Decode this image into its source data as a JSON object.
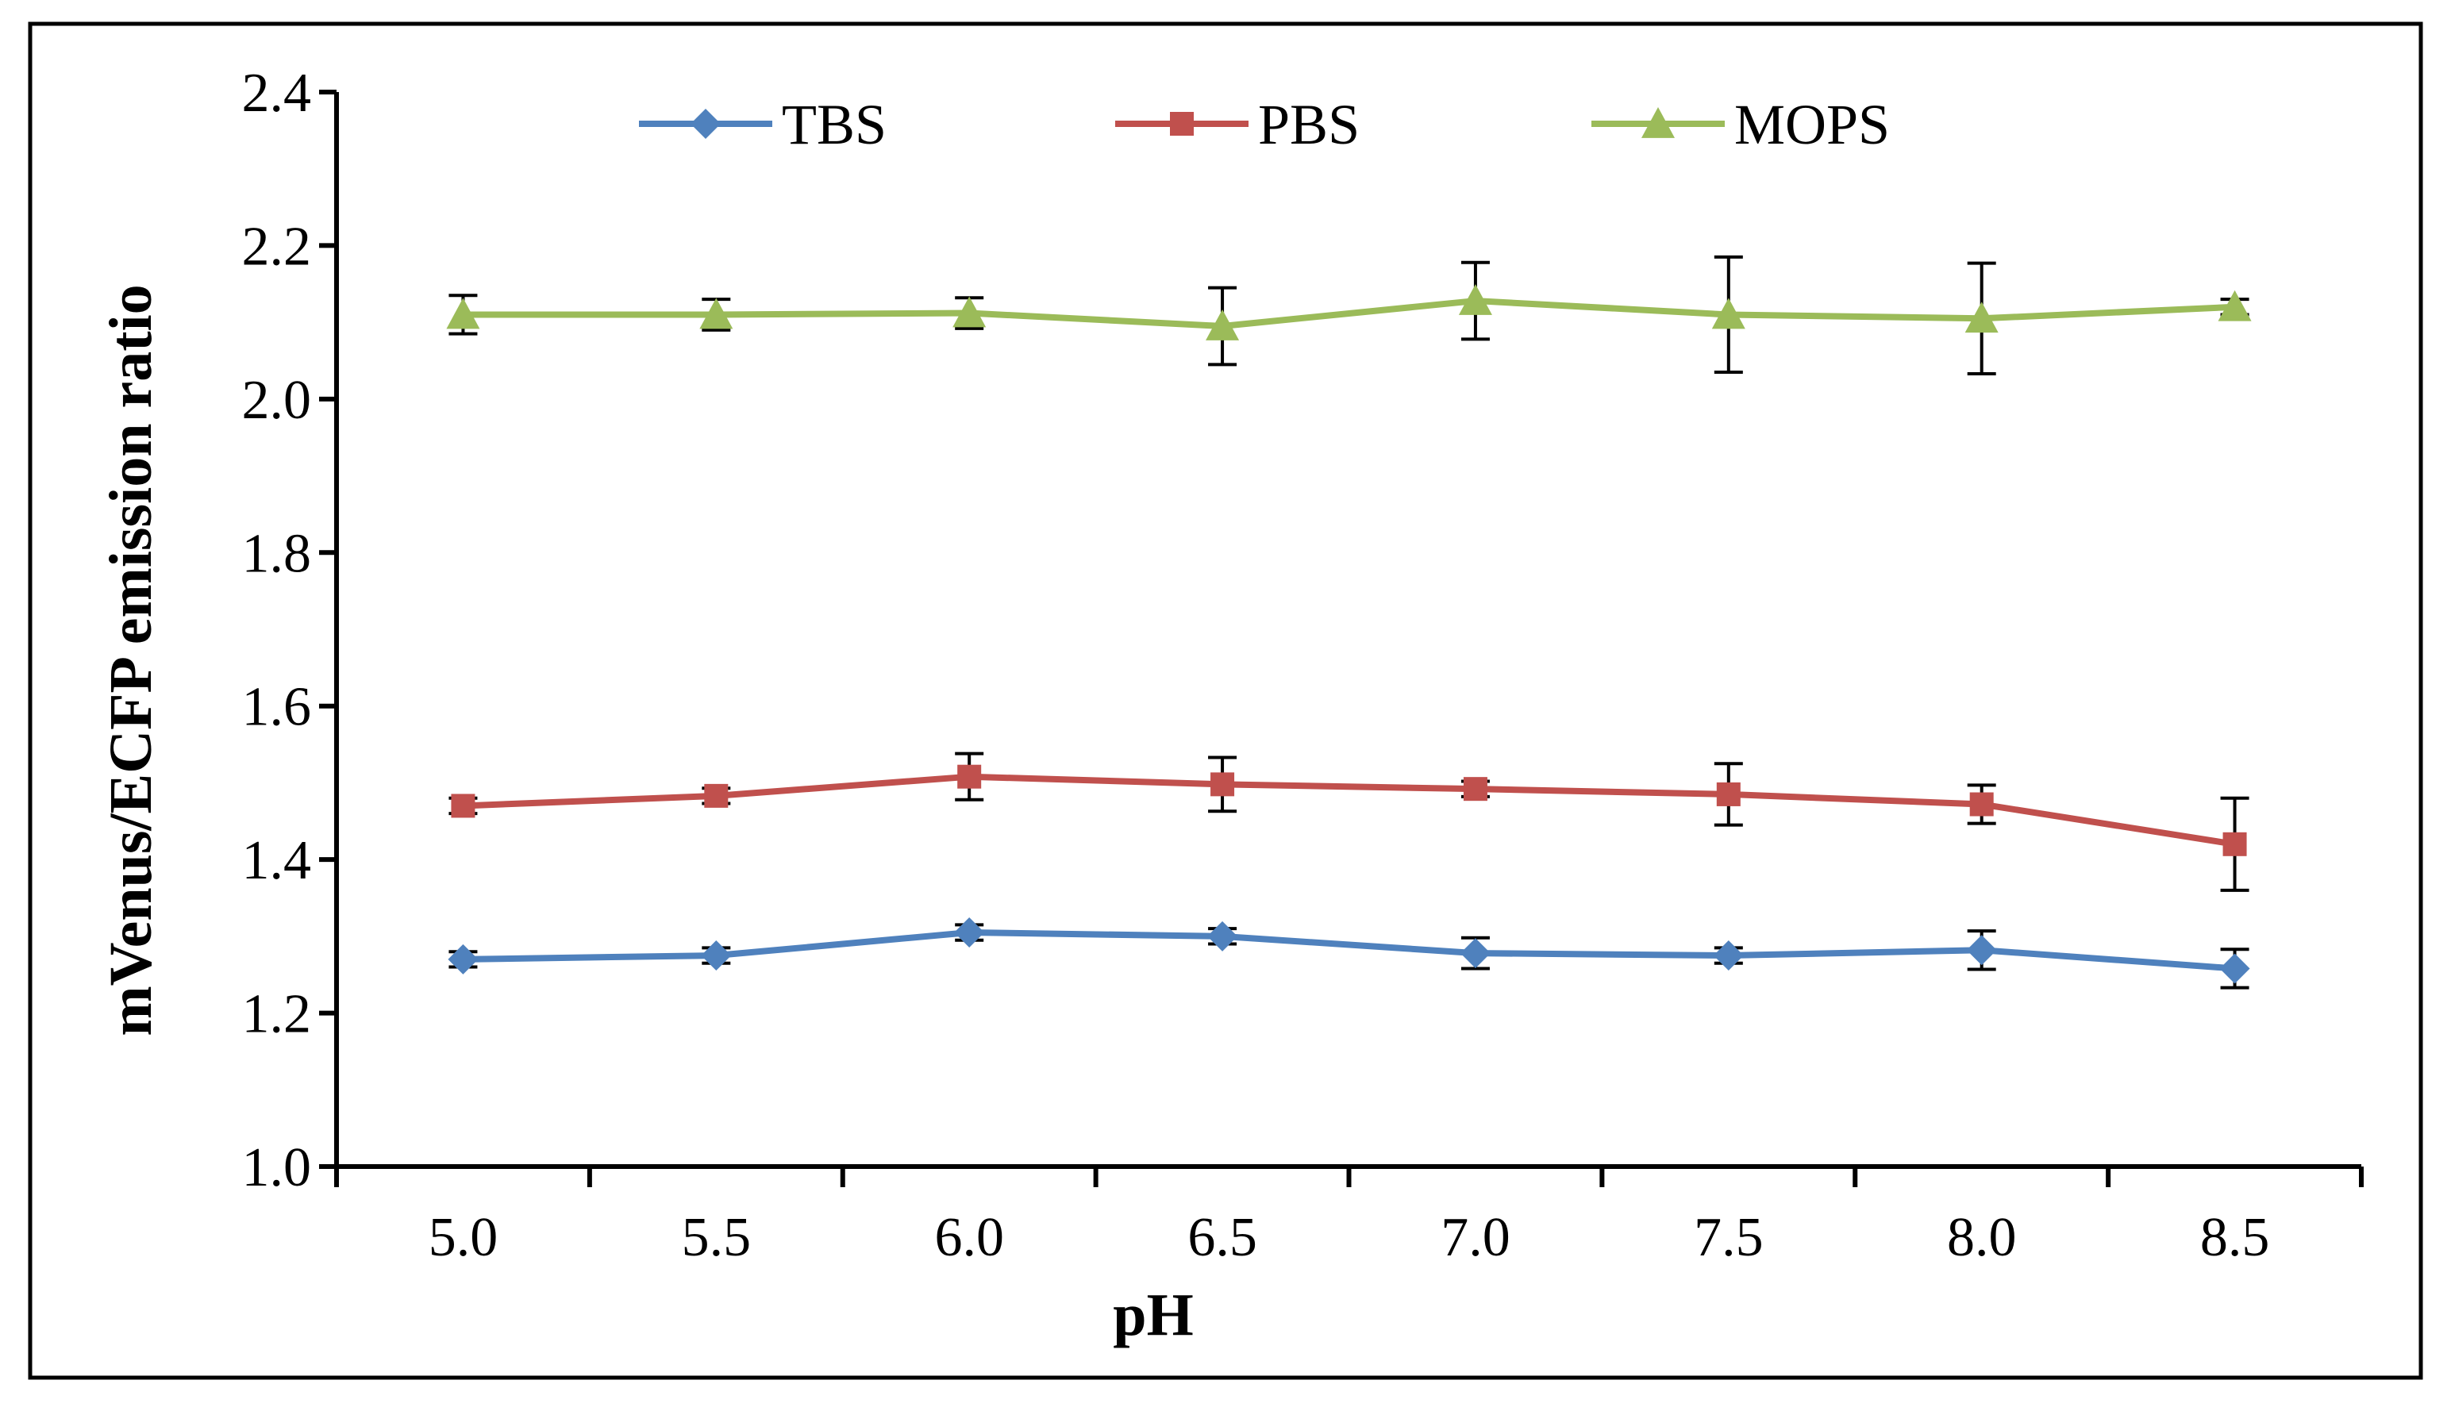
{
  "chart_data": {
    "type": "line",
    "title": "",
    "xlabel": "pH",
    "ylabel": "mVenus/ECFP emission ratio",
    "categories": [
      "5.0",
      "5.5",
      "6.0",
      "6.5",
      "7.0",
      "7.5",
      "8.0",
      "8.5"
    ],
    "yticks": [
      "1.0",
      "1.2",
      "1.4",
      "1.6",
      "1.8",
      "2.0",
      "2.2",
      "2.4"
    ],
    "ylim": [
      1.0,
      2.4
    ],
    "grid": false,
    "legend_position": "top",
    "series": [
      {
        "name": "TBS",
        "color": "#4f81bd",
        "marker": "diamond",
        "values": [
          1.27,
          1.275,
          1.305,
          1.3,
          1.278,
          1.275,
          1.282,
          1.258
        ],
        "errors": [
          0.01,
          0.01,
          0.01,
          0.01,
          0.02,
          0.01,
          0.025,
          0.025
        ]
      },
      {
        "name": "PBS",
        "color": "#c0504d",
        "marker": "square",
        "values": [
          1.47,
          1.483,
          1.508,
          1.498,
          1.492,
          1.485,
          1.472,
          1.42
        ],
        "errors": [
          0.01,
          0.01,
          0.03,
          0.035,
          0.01,
          0.04,
          0.025,
          0.06
        ]
      },
      {
        "name": "MOPS",
        "color": "#9bbb59",
        "marker": "triangle",
        "values": [
          2.11,
          2.11,
          2.112,
          2.095,
          2.128,
          2.11,
          2.105,
          2.12
        ],
        "errors": [
          0.025,
          0.02,
          0.02,
          0.05,
          0.05,
          0.075,
          0.072,
          0.01
        ]
      }
    ]
  }
}
